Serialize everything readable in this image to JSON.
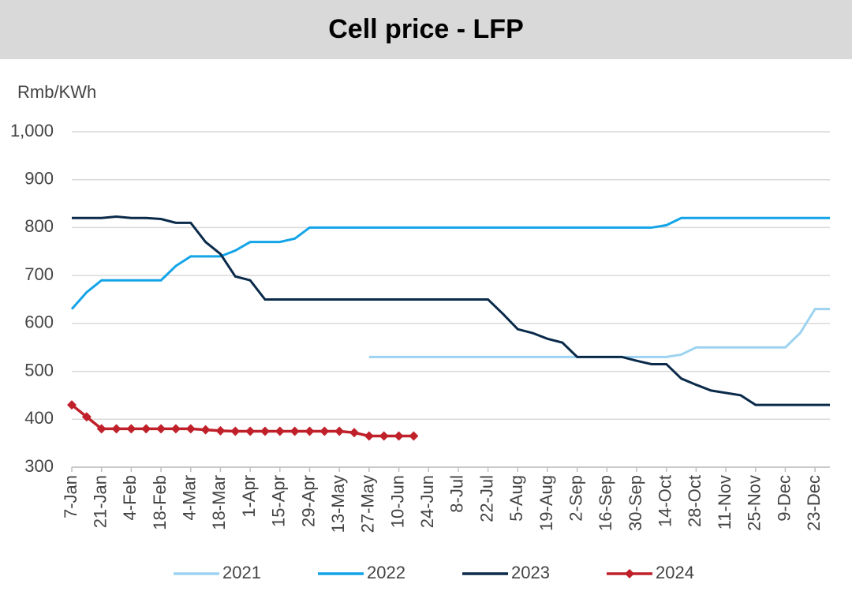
{
  "chart_data": {
    "type": "line",
    "title": "Cell price - LFP",
    "y_label": "Rmb/KWh",
    "categories": [
      "7-Jan",
      null,
      "21-Jan",
      null,
      "4-Feb",
      null,
      "18-Feb",
      null,
      "4-Mar",
      null,
      "18-Mar",
      null,
      "1-Apr",
      null,
      "15-Apr",
      null,
      "29-Apr",
      null,
      "13-May",
      null,
      "27-May",
      null,
      "10-Jun",
      null,
      "24-Jun",
      null,
      "8-Jul",
      null,
      "22-Jul",
      null,
      "5-Aug",
      null,
      "19-Aug",
      null,
      "2-Sep",
      null,
      "16-Sep",
      null,
      "30-Sep",
      null,
      "14-Oct",
      null,
      "28-Oct",
      null,
      "11-Nov",
      null,
      "25-Nov",
      null,
      "9-Dec",
      null,
      "23-Dec",
      null
    ],
    "series": [
      {
        "name": "2021",
        "color": "#9dd3f0",
        "values": [
          null,
          null,
          null,
          null,
          null,
          null,
          null,
          null,
          null,
          null,
          null,
          null,
          null,
          null,
          null,
          null,
          null,
          null,
          null,
          null,
          530,
          530,
          530,
          530,
          530,
          530,
          530,
          530,
          530,
          530,
          530,
          530,
          530,
          530,
          530,
          530,
          530,
          530,
          530,
          530,
          530,
          535,
          550,
          550,
          550,
          550,
          550,
          550,
          550,
          580,
          630,
          630
        ]
      },
      {
        "name": "2022",
        "color": "#13a4e8",
        "values": [
          630,
          665,
          690,
          690,
          690,
          690,
          690,
          720,
          740,
          740,
          740,
          752,
          770,
          770,
          770,
          777,
          800,
          800,
          800,
          800,
          800,
          800,
          800,
          800,
          800,
          800,
          800,
          800,
          800,
          800,
          800,
          800,
          800,
          800,
          800,
          800,
          800,
          800,
          800,
          800,
          805,
          820,
          820,
          820,
          820,
          820,
          820,
          820,
          820,
          820,
          820,
          820
        ]
      },
      {
        "name": "2023",
        "color": "#0a2a4a",
        "values": [
          820,
          820,
          820,
          823,
          820,
          820,
          818,
          810,
          810,
          770,
          745,
          698,
          690,
          650,
          650,
          650,
          650,
          650,
          650,
          650,
          650,
          650,
          650,
          650,
          650,
          650,
          650,
          650,
          650,
          620,
          588,
          580,
          568,
          560,
          530,
          530,
          530,
          530,
          522,
          515,
          515,
          485,
          472,
          460,
          455,
          450,
          430,
          430,
          430,
          430,
          430,
          430
        ]
      },
      {
        "name": "2024",
        "color": "#c0202a",
        "marker": "diamond",
        "values": [
          430,
          405,
          380,
          380,
          380,
          380,
          380,
          380,
          380,
          378,
          376,
          375,
          375,
          375,
          375,
          375,
          375,
          375,
          375,
          372,
          365,
          365,
          365,
          365,
          null,
          null,
          null,
          null,
          null,
          null,
          null,
          null,
          null,
          null,
          null,
          null,
          null,
          null,
          null,
          null,
          null,
          null,
          null,
          null,
          null,
          null,
          null,
          null,
          null,
          null,
          null,
          null
        ]
      }
    ],
    "ylim": [
      300,
      1000
    ],
    "yticks": [
      300,
      400,
      500,
      600,
      700,
      800,
      900,
      {
        "value": 1000,
        "label": "1,000"
      }
    ],
    "grid": true,
    "legend": "bottom"
  }
}
